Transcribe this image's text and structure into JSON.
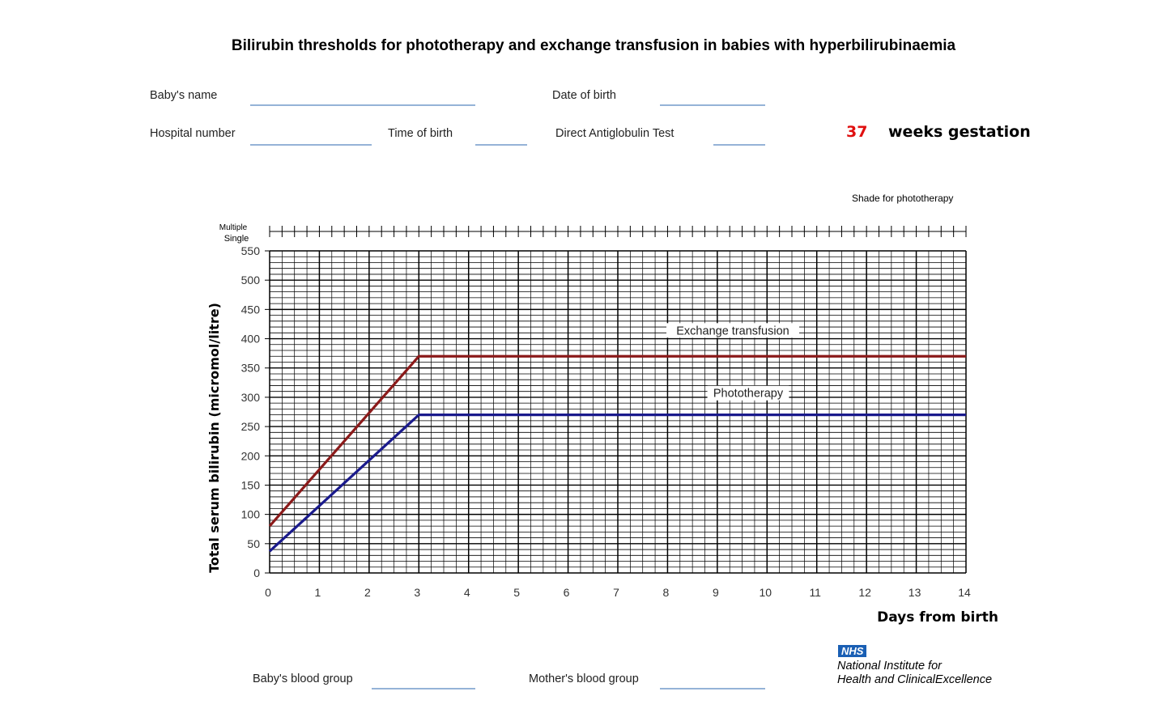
{
  "header": {
    "title": "Bilirubin thresholds for phototherapy and exchange transfusion in babies with hyperbilirubinaemia"
  },
  "form": {
    "babys_name": "Baby's name",
    "date_of_birth": "Date of birth",
    "hospital_number": "Hospital number",
    "time_of_birth": "Time of birth",
    "direct_antiglobulin_test": "Direct Antiglobulin Test",
    "gestation_weeks": "37",
    "gestation_label": "weeks gestation",
    "babys_blood_group": "Baby's blood group",
    "mothers_blood_group": "Mother's blood group"
  },
  "shade_label": "Shade for phototherapy",
  "strip_labels": {
    "multiple": "Multiple",
    "single": "Single"
  },
  "footer": {
    "nhs_badge": "NHS",
    "org_line1": "National Institute for",
    "org_line2": "Health and ClinicalExcellence"
  },
  "colors": {
    "exchange": "#8b1a1a",
    "phototherapy": "#1a1a8c",
    "form_line": "#95b3d7",
    "gestation": "#e01010"
  },
  "chart_data": {
    "type": "line",
    "title": "",
    "xlabel": "Days from birth",
    "ylabel": "Total serum bilirubin  (micromol/litre)",
    "xlim": [
      0,
      14
    ],
    "ylim": [
      0,
      550
    ],
    "x_ticks": [
      0,
      1,
      2,
      3,
      4,
      5,
      6,
      7,
      8,
      9,
      10,
      11,
      12,
      13,
      14
    ],
    "y_ticks": [
      0,
      50,
      100,
      150,
      200,
      250,
      300,
      350,
      400,
      450,
      500,
      550
    ],
    "grid": true,
    "series": [
      {
        "name": "Exchange transfusion",
        "points": [
          [
            0,
            80
          ],
          [
            3,
            370
          ],
          [
            14,
            370
          ]
        ]
      },
      {
        "name": "Phototherapy",
        "points": [
          [
            0,
            37
          ],
          [
            3,
            270
          ],
          [
            14,
            270
          ]
        ]
      }
    ]
  }
}
